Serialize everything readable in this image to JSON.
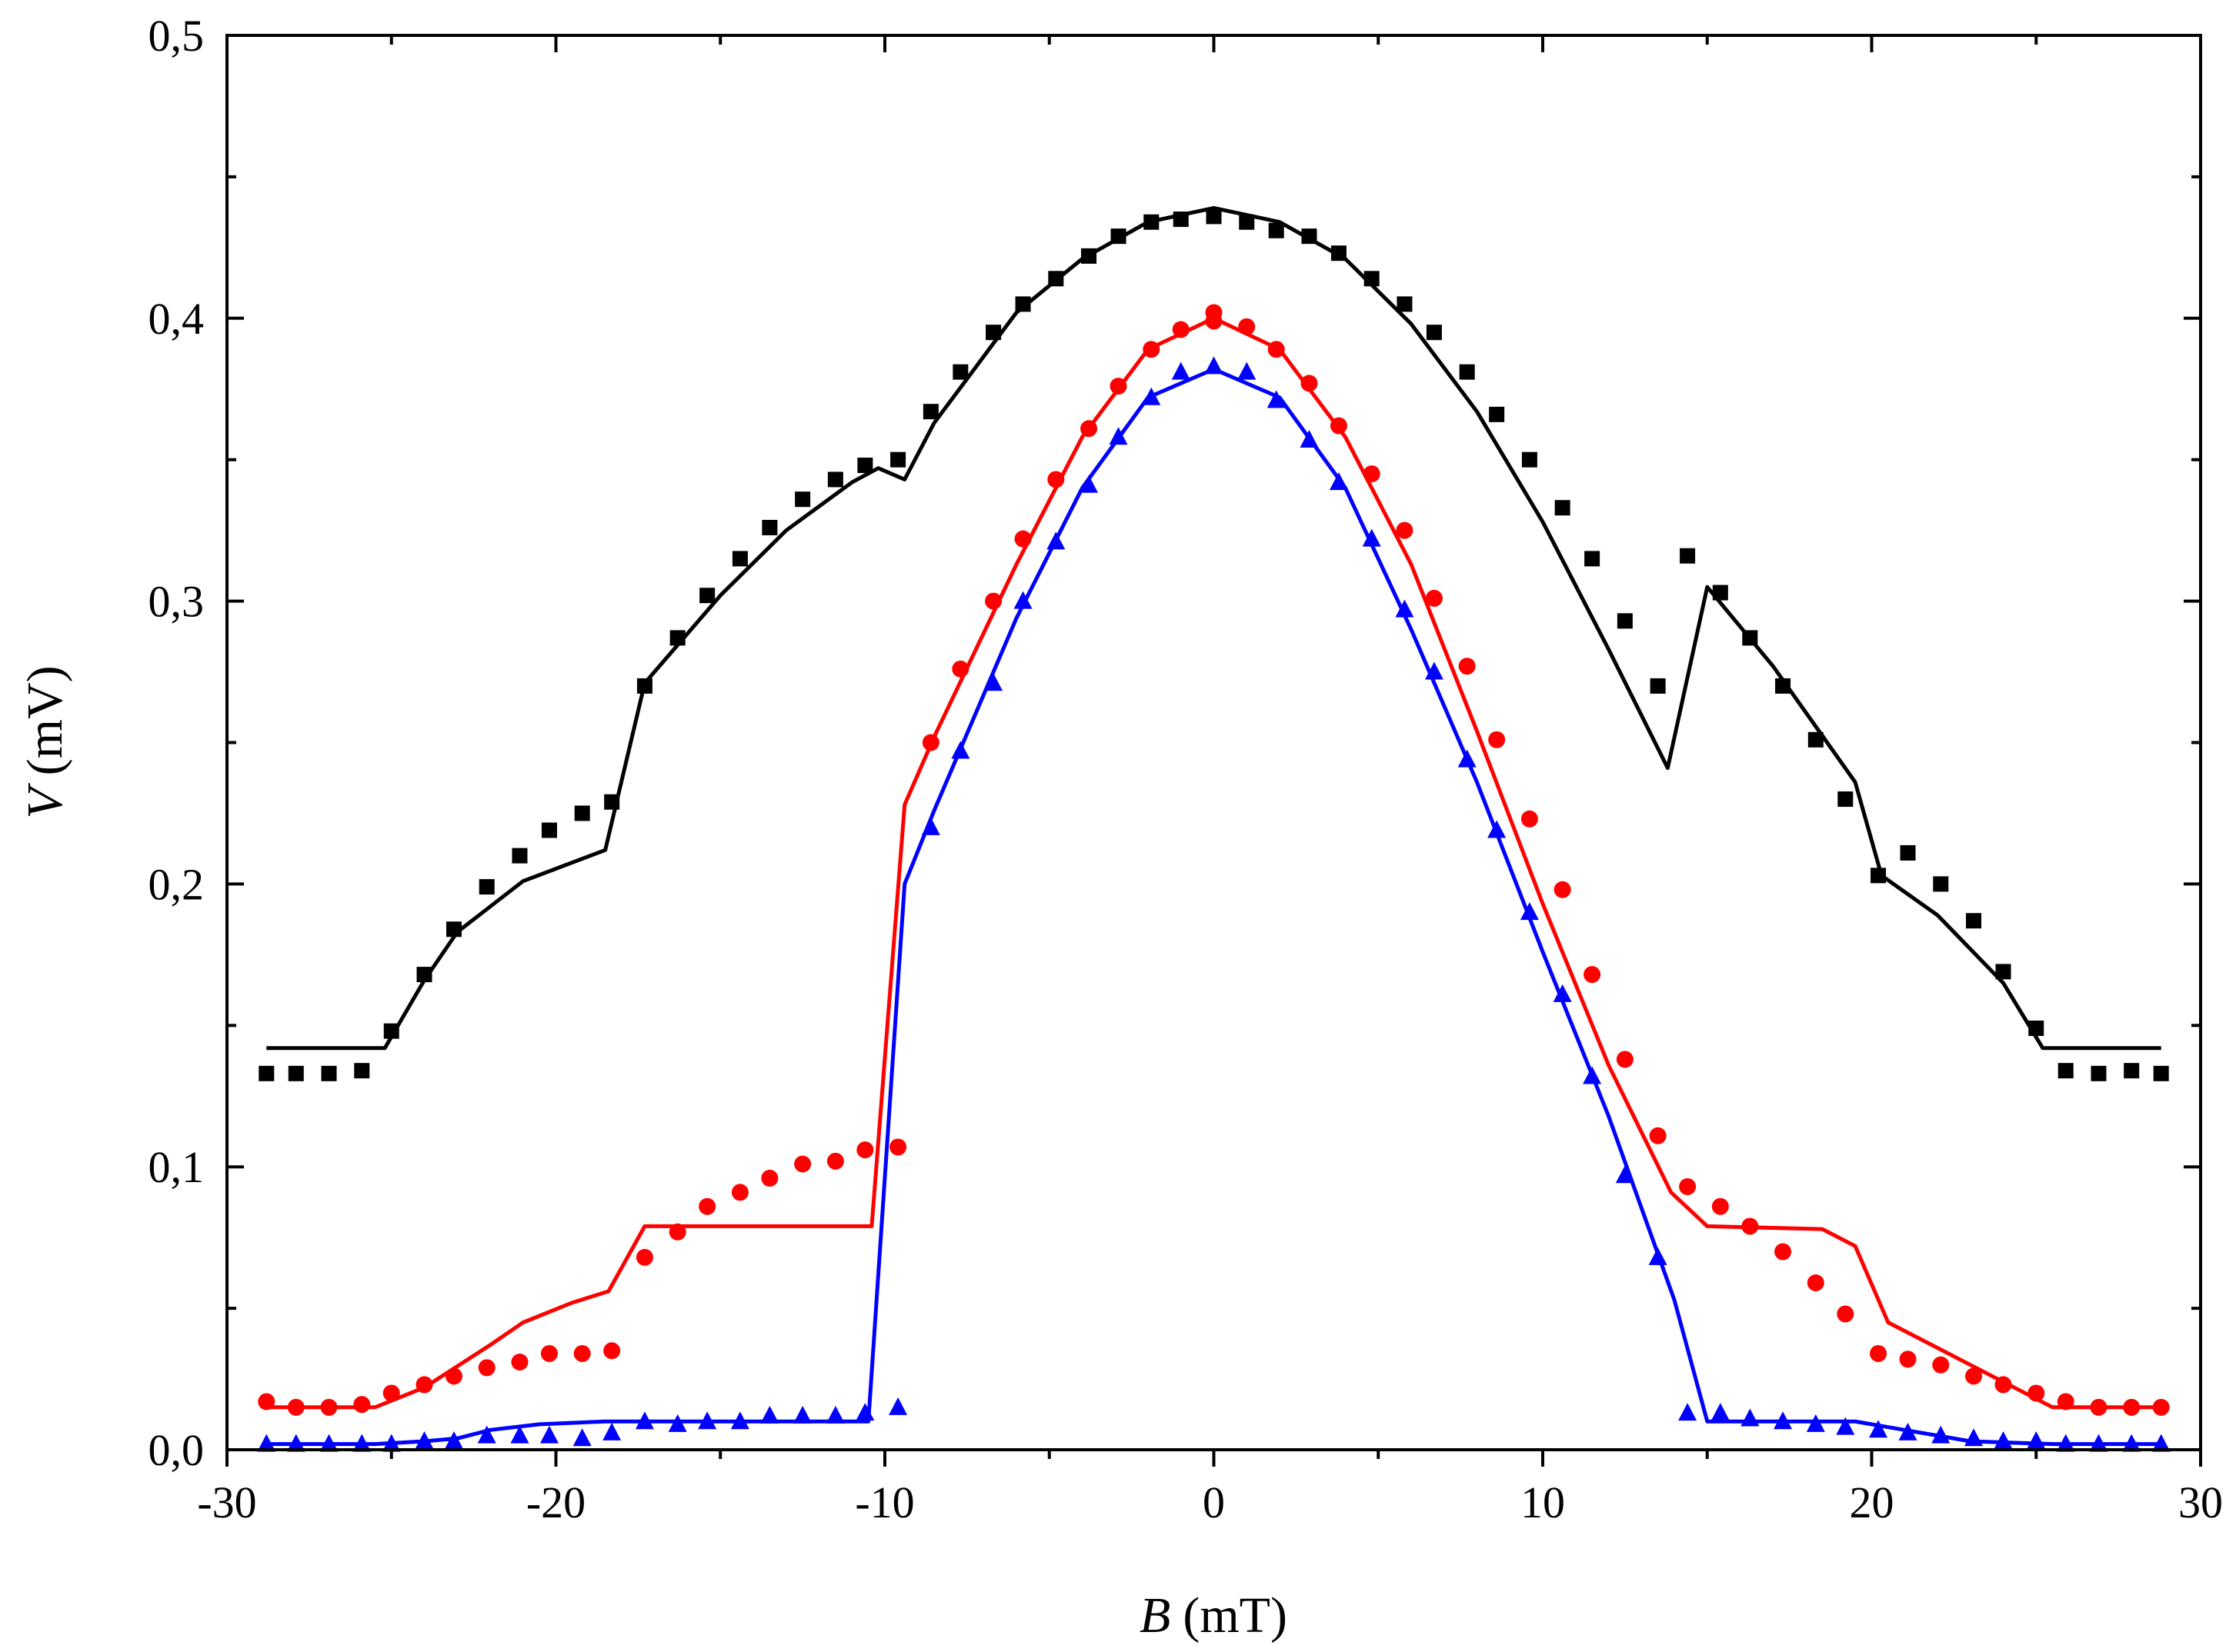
{
  "chart_data": {
    "type": "scatter",
    "title": "",
    "xlabel_symbol": "B",
    "xlabel_unit": "(mT)",
    "ylabel_symbol": "V",
    "ylabel_unit": "(mV)",
    "xlim": [
      -30,
      30
    ],
    "ylim": [
      0.0,
      0.5
    ],
    "x_ticks": [
      -30,
      -20,
      -10,
      0,
      10,
      20,
      30
    ],
    "x_tick_labels": [
      "-30",
      "-20",
      "-10",
      "0",
      "10",
      "20",
      "30"
    ],
    "y_ticks": [
      0.0,
      0.1,
      0.2,
      0.3,
      0.4,
      0.5
    ],
    "y_tick_labels": [
      "0,0",
      "0,1",
      "0,2",
      "0,3",
      "0,4",
      "0,5"
    ],
    "grid": false,
    "legend": "none",
    "series": [
      {
        "name": "black-squares",
        "color": "#000000",
        "marker": "square",
        "points": [
          [
            -28.8,
            0.133
          ],
          [
            -27.9,
            0.133
          ],
          [
            -26.9,
            0.133
          ],
          [
            -25.9,
            0.134
          ],
          [
            -25.0,
            0.148
          ],
          [
            -24.0,
            0.168
          ],
          [
            -23.1,
            0.184
          ],
          [
            -22.1,
            0.199
          ],
          [
            -21.1,
            0.21
          ],
          [
            -20.2,
            0.219
          ],
          [
            -19.2,
            0.225
          ],
          [
            -18.3,
            0.229
          ],
          [
            -17.3,
            0.27
          ],
          [
            -16.3,
            0.287
          ],
          [
            -15.4,
            0.302
          ],
          [
            -14.4,
            0.315
          ],
          [
            -13.5,
            0.326
          ],
          [
            -12.5,
            0.336
          ],
          [
            -11.5,
            0.343
          ],
          [
            -10.6,
            0.348
          ],
          [
            -9.6,
            0.35
          ],
          [
            -8.6,
            0.367
          ],
          [
            -7.7,
            0.381
          ],
          [
            -6.7,
            0.395
          ],
          [
            -5.8,
            0.405
          ],
          [
            -4.8,
            0.414
          ],
          [
            -3.8,
            0.422
          ],
          [
            -2.9,
            0.429
          ],
          [
            -1.9,
            0.434
          ],
          [
            -1.0,
            0.435
          ],
          [
            0.0,
            0.436
          ],
          [
            1.0,
            0.434
          ],
          [
            1.9,
            0.431
          ],
          [
            2.9,
            0.429
          ],
          [
            3.8,
            0.423
          ],
          [
            4.8,
            0.414
          ],
          [
            5.8,
            0.405
          ],
          [
            6.7,
            0.395
          ],
          [
            7.7,
            0.381
          ],
          [
            8.6,
            0.366
          ],
          [
            9.6,
            0.35
          ],
          [
            10.6,
            0.333
          ],
          [
            11.5,
            0.315
          ],
          [
            12.5,
            0.293
          ],
          [
            13.5,
            0.27
          ],
          [
            14.4,
            0.316
          ],
          [
            15.4,
            0.303
          ],
          [
            16.3,
            0.287
          ],
          [
            17.3,
            0.27
          ],
          [
            18.3,
            0.251
          ],
          [
            19.2,
            0.23
          ],
          [
            20.2,
            0.203
          ],
          [
            21.1,
            0.211
          ],
          [
            22.1,
            0.2
          ],
          [
            23.1,
            0.187
          ],
          [
            24.0,
            0.169
          ],
          [
            25.0,
            0.149
          ],
          [
            25.9,
            0.134
          ],
          [
            26.9,
            0.133
          ],
          [
            27.9,
            0.134
          ],
          [
            28.8,
            0.133
          ]
        ],
        "fit": [
          [
            -28.8,
            0.142
          ],
          [
            -25.2,
            0.142
          ],
          [
            -24.0,
            0.166
          ],
          [
            -23.0,
            0.183
          ],
          [
            -21.0,
            0.201
          ],
          [
            -18.5,
            0.212
          ],
          [
            -17.3,
            0.271
          ],
          [
            -15.0,
            0.302
          ],
          [
            -13.0,
            0.325
          ],
          [
            -11.0,
            0.342
          ],
          [
            -10.2,
            0.347
          ],
          [
            -9.4,
            0.343
          ],
          [
            -8.5,
            0.363
          ],
          [
            -6.0,
            0.402
          ],
          [
            -4.0,
            0.421
          ],
          [
            -2.0,
            0.434
          ],
          [
            0.0,
            0.439
          ],
          [
            2.0,
            0.434
          ],
          [
            4.0,
            0.421
          ],
          [
            6.0,
            0.398
          ],
          [
            8.0,
            0.367
          ],
          [
            10.0,
            0.328
          ],
          [
            12.0,
            0.283
          ],
          [
            13.8,
            0.241
          ],
          [
            15.0,
            0.305
          ],
          [
            17.0,
            0.277
          ],
          [
            19.5,
            0.236
          ],
          [
            20.3,
            0.203
          ],
          [
            22.0,
            0.189
          ],
          [
            24.0,
            0.165
          ],
          [
            25.2,
            0.142
          ],
          [
            28.8,
            0.142
          ]
        ]
      },
      {
        "name": "red-circles",
        "color": "#ff0000",
        "marker": "circle",
        "points": [
          [
            -28.8,
            0.017
          ],
          [
            -27.9,
            0.015
          ],
          [
            -26.9,
            0.015
          ],
          [
            -25.9,
            0.016
          ],
          [
            -25.0,
            0.02
          ],
          [
            -24.0,
            0.023
          ],
          [
            -23.1,
            0.026
          ],
          [
            -22.1,
            0.029
          ],
          [
            -21.1,
            0.031
          ],
          [
            -20.2,
            0.034
          ],
          [
            -19.2,
            0.034
          ],
          [
            -18.3,
            0.035
          ],
          [
            -17.3,
            0.068
          ],
          [
            -16.3,
            0.077
          ],
          [
            -15.4,
            0.086
          ],
          [
            -14.4,
            0.091
          ],
          [
            -13.5,
            0.096
          ],
          [
            -12.5,
            0.101
          ],
          [
            -11.5,
            0.102
          ],
          [
            -10.6,
            0.106
          ],
          [
            -9.6,
            0.107
          ],
          [
            -8.6,
            0.25
          ],
          [
            -7.7,
            0.276
          ],
          [
            -6.7,
            0.3
          ],
          [
            -5.8,
            0.322
          ],
          [
            -4.8,
            0.343
          ],
          [
            -3.8,
            0.361
          ],
          [
            -2.9,
            0.376
          ],
          [
            -1.9,
            0.389
          ],
          [
            -1.0,
            0.396
          ],
          [
            0.0,
            0.399
          ],
          [
            0.0,
            0.402
          ],
          [
            1.0,
            0.397
          ],
          [
            1.9,
            0.389
          ],
          [
            2.9,
            0.377
          ],
          [
            3.8,
            0.362
          ],
          [
            4.8,
            0.345
          ],
          [
            5.8,
            0.325
          ],
          [
            6.7,
            0.301
          ],
          [
            7.7,
            0.277
          ],
          [
            8.6,
            0.251
          ],
          [
            9.6,
            0.223
          ],
          [
            10.6,
            0.198
          ],
          [
            11.5,
            0.168
          ],
          [
            12.5,
            0.138
          ],
          [
            13.5,
            0.111
          ],
          [
            14.4,
            0.093
          ],
          [
            15.4,
            0.086
          ],
          [
            16.3,
            0.079
          ],
          [
            17.3,
            0.07
          ],
          [
            18.3,
            0.059
          ],
          [
            19.2,
            0.048
          ],
          [
            20.2,
            0.034
          ],
          [
            21.1,
            0.032
          ],
          [
            22.1,
            0.03
          ],
          [
            23.1,
            0.026
          ],
          [
            24.0,
            0.023
          ],
          [
            25.0,
            0.02
          ],
          [
            25.9,
            0.017
          ],
          [
            26.9,
            0.015
          ],
          [
            27.9,
            0.015
          ],
          [
            28.8,
            0.015
          ]
        ],
        "fit": [
          [
            -28.8,
            0.015
          ],
          [
            -25.5,
            0.015
          ],
          [
            -24.0,
            0.022
          ],
          [
            -22.0,
            0.037
          ],
          [
            -21.0,
            0.045
          ],
          [
            -19.5,
            0.052
          ],
          [
            -18.4,
            0.056
          ],
          [
            -17.3,
            0.079
          ],
          [
            -10.4,
            0.079
          ],
          [
            -9.4,
            0.228
          ],
          [
            -8.5,
            0.252
          ],
          [
            -6.0,
            0.313
          ],
          [
            -4.0,
            0.358
          ],
          [
            -2.0,
            0.389
          ],
          [
            0.0,
            0.4
          ],
          [
            2.0,
            0.389
          ],
          [
            4.0,
            0.358
          ],
          [
            6.0,
            0.313
          ],
          [
            8.0,
            0.254
          ],
          [
            10.0,
            0.193
          ],
          [
            12.0,
            0.136
          ],
          [
            13.9,
            0.091
          ],
          [
            15.0,
            0.079
          ],
          [
            18.5,
            0.078
          ],
          [
            19.5,
            0.072
          ],
          [
            20.5,
            0.045
          ],
          [
            23.0,
            0.03
          ],
          [
            25.5,
            0.015
          ],
          [
            28.8,
            0.015
          ]
        ]
      },
      {
        "name": "blue-triangles",
        "color": "#0000ff",
        "marker": "triangle",
        "points": [
          [
            -28.8,
            0.002
          ],
          [
            -27.9,
            0.002
          ],
          [
            -26.9,
            0.002
          ],
          [
            -25.9,
            0.002
          ],
          [
            -25.0,
            0.002
          ],
          [
            -24.0,
            0.003
          ],
          [
            -23.1,
            0.003
          ],
          [
            -22.1,
            0.005
          ],
          [
            -21.1,
            0.005
          ],
          [
            -20.2,
            0.005
          ],
          [
            -19.2,
            0.004
          ],
          [
            -18.3,
            0.006
          ],
          [
            -17.3,
            0.01
          ],
          [
            -16.3,
            0.009
          ],
          [
            -15.4,
            0.01
          ],
          [
            -14.4,
            0.01
          ],
          [
            -13.5,
            0.012
          ],
          [
            -12.5,
            0.012
          ],
          [
            -11.5,
            0.012
          ],
          [
            -10.6,
            0.013
          ],
          [
            -9.6,
            0.015
          ],
          [
            -8.6,
            0.22
          ],
          [
            -7.7,
            0.247
          ],
          [
            -6.7,
            0.271
          ],
          [
            -5.8,
            0.3
          ],
          [
            -4.8,
            0.321
          ],
          [
            -3.8,
            0.341
          ],
          [
            -2.9,
            0.358
          ],
          [
            -1.9,
            0.372
          ],
          [
            -1.0,
            0.381
          ],
          [
            0.0,
            0.383
          ],
          [
            1.0,
            0.381
          ],
          [
            1.9,
            0.371
          ],
          [
            2.9,
            0.357
          ],
          [
            3.8,
            0.342
          ],
          [
            4.8,
            0.322
          ],
          [
            5.8,
            0.297
          ],
          [
            6.7,
            0.275
          ],
          [
            7.7,
            0.244
          ],
          [
            8.6,
            0.219
          ],
          [
            9.6,
            0.19
          ],
          [
            10.6,
            0.161
          ],
          [
            11.5,
            0.132
          ],
          [
            12.5,
            0.097
          ],
          [
            13.5,
            0.068
          ],
          [
            14.4,
            0.013
          ],
          [
            15.4,
            0.013
          ],
          [
            16.3,
            0.011
          ],
          [
            17.3,
            0.01
          ],
          [
            18.3,
            0.009
          ],
          [
            19.2,
            0.008
          ],
          [
            20.2,
            0.007
          ],
          [
            21.1,
            0.006
          ],
          [
            22.1,
            0.005
          ],
          [
            23.1,
            0.004
          ],
          [
            24.0,
            0.003
          ],
          [
            25.0,
            0.003
          ],
          [
            25.9,
            0.002
          ],
          [
            26.9,
            0.002
          ],
          [
            27.9,
            0.002
          ],
          [
            28.8,
            0.002
          ]
        ],
        "fit": [
          [
            -28.8,
            0.002
          ],
          [
            -25.5,
            0.002
          ],
          [
            -24.0,
            0.003
          ],
          [
            -23.0,
            0.004
          ],
          [
            -22.0,
            0.007
          ],
          [
            -20.5,
            0.009
          ],
          [
            -18.5,
            0.01
          ],
          [
            -10.5,
            0.01
          ],
          [
            -9.4,
            0.2
          ],
          [
            -8.5,
            0.226
          ],
          [
            -6.0,
            0.294
          ],
          [
            -4.0,
            0.34
          ],
          [
            -2.0,
            0.372
          ],
          [
            0.0,
            0.382
          ],
          [
            2.0,
            0.372
          ],
          [
            4.0,
            0.34
          ],
          [
            6.0,
            0.29
          ],
          [
            8.0,
            0.236
          ],
          [
            10.0,
            0.176
          ],
          [
            12.0,
            0.118
          ],
          [
            14.0,
            0.053
          ],
          [
            15.0,
            0.01
          ],
          [
            19.5,
            0.01
          ],
          [
            21.0,
            0.007
          ],
          [
            23.0,
            0.003
          ],
          [
            25.5,
            0.002
          ],
          [
            28.8,
            0.002
          ]
        ]
      }
    ]
  }
}
